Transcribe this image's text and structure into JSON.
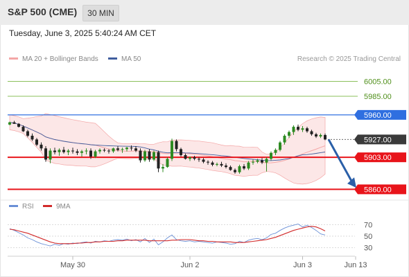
{
  "header": {
    "title": "S&P 500 (CME)",
    "timeframe": "30 MIN"
  },
  "datetime": "Tuesday, June 3, 2025 5:40:24 AM CET",
  "legend": {
    "bollinger_label": "MA 20 + Bollinger Bands",
    "ma50_label": "MA 50",
    "rsi_label": "RSI",
    "rsi_ma_label": "9MA"
  },
  "credit": "Research © 2025 Trading Central",
  "colors": {
    "bollinger": "#f4a6a6",
    "ma50": "#3f5d9e",
    "bull": "#2e8b22",
    "bear": "#222222",
    "support": "#e8141a",
    "resistance_blue": "#2f6fe0",
    "target_green": "#8bbf5a",
    "arrow": "#2a5fa8",
    "rsi": "#6a8fd6",
    "rsi_ma": "#d22a2a"
  },
  "chart_data": [
    {
      "type": "candlestick",
      "title": "S&P 500 (CME)",
      "ylim": [
        5852,
        6012
      ],
      "x_ticks": [
        {
          "label": "May 30",
          "i": 14
        },
        {
          "label": "Jun 2",
          "i": 40
        },
        {
          "label": "Jun 3",
          "i": 65
        },
        {
          "label": "Jun 13",
          "i": 75
        }
      ],
      "levels": [
        {
          "label": "6005.00",
          "value": 6005,
          "kind": "target"
        },
        {
          "label": "5985.00",
          "value": 5985,
          "kind": "target"
        },
        {
          "label": "5960.00",
          "value": 5960,
          "kind": "resistance"
        },
        {
          "label": "5927.00",
          "value": 5927,
          "kind": "last"
        },
        {
          "label": "5903.00",
          "value": 5903,
          "kind": "support"
        },
        {
          "label": "5860.00",
          "value": 5860,
          "kind": "support"
        }
      ],
      "last_price": 5927,
      "projection": {
        "from_value": 5927,
        "to_value": 5864
      },
      "candles": [
        [
          5947,
          5951,
          5946,
          5950
        ],
        [
          5950,
          5952,
          5948,
          5948
        ],
        [
          5948,
          5949,
          5943,
          5944
        ],
        [
          5944,
          5946,
          5937,
          5938
        ],
        [
          5938,
          5940,
          5930,
          5932
        ],
        [
          5932,
          5935,
          5925,
          5927
        ],
        [
          5927,
          5929,
          5918,
          5920
        ],
        [
          5920,
          5923,
          5912,
          5915
        ],
        [
          5915,
          5918,
          5897,
          5900
        ],
        [
          5900,
          5915,
          5895,
          5912
        ],
        [
          5912,
          5916,
          5907,
          5910
        ],
        [
          5910,
          5915,
          5905,
          5913
        ],
        [
          5913,
          5917,
          5908,
          5910
        ],
        [
          5910,
          5914,
          5906,
          5912
        ],
        [
          5912,
          5916,
          5908,
          5911
        ],
        [
          5911,
          5914,
          5906,
          5909
        ],
        [
          5909,
          5913,
          5904,
          5911
        ],
        [
          5911,
          5915,
          5907,
          5912
        ],
        [
          5912,
          5915,
          5901,
          5904
        ],
        [
          5904,
          5913,
          5902,
          5911
        ],
        [
          5911,
          5915,
          5908,
          5913
        ],
        [
          5913,
          5915,
          5910,
          5912
        ],
        [
          5912,
          5914,
          5908,
          5911
        ],
        [
          5911,
          5916,
          5909,
          5915
        ],
        [
          5915,
          5918,
          5911,
          5913
        ],
        [
          5913,
          5916,
          5909,
          5914
        ],
        [
          5914,
          5917,
          5911,
          5916
        ],
        [
          5916,
          5919,
          5912,
          5915
        ],
        [
          5915,
          5918,
          5910,
          5912
        ],
        [
          5912,
          5915,
          5896,
          5899
        ],
        [
          5899,
          5913,
          5897,
          5911
        ],
        [
          5911,
          5914,
          5897,
          5900
        ],
        [
          5900,
          5912,
          5898,
          5910
        ],
        [
          5910,
          5912,
          5883,
          5888
        ],
        [
          5888,
          5894,
          5883,
          5890
        ],
        [
          5890,
          5903,
          5889,
          5901
        ],
        [
          5901,
          5928,
          5898,
          5925
        ],
        [
          5925,
          5927,
          5911,
          5914
        ],
        [
          5914,
          5916,
          5904,
          5906
        ],
        [
          5906,
          5908,
          5900,
          5901
        ],
        [
          5901,
          5904,
          5898,
          5903
        ],
        [
          5903,
          5905,
          5899,
          5901
        ],
        [
          5901,
          5903,
          5897,
          5900
        ],
        [
          5900,
          5902,
          5895,
          5897
        ],
        [
          5897,
          5899,
          5893,
          5896
        ],
        [
          5896,
          5898,
          5891,
          5893
        ],
        [
          5893,
          5896,
          5891,
          5894
        ],
        [
          5894,
          5897,
          5890,
          5892
        ],
        [
          5892,
          5895,
          5888,
          5890
        ],
        [
          5890,
          5892,
          5885,
          5886
        ],
        [
          5886,
          5888,
          5881,
          5883
        ],
        [
          5883,
          5893,
          5881,
          5891
        ],
        [
          5891,
          5894,
          5886,
          5888
        ],
        [
          5888,
          5898,
          5886,
          5896
        ],
        [
          5896,
          5900,
          5893,
          5897
        ],
        [
          5897,
          5901,
          5895,
          5899
        ],
        [
          5899,
          5902,
          5894,
          5896
        ],
        [
          5896,
          5903,
          5884,
          5901
        ],
        [
          5901,
          5911,
          5899,
          5909
        ],
        [
          5909,
          5915,
          5906,
          5913
        ],
        [
          5913,
          5925,
          5911,
          5923
        ],
        [
          5923,
          5934,
          5920,
          5932
        ],
        [
          5932,
          5939,
          5929,
          5937
        ],
        [
          5937,
          5946,
          5933,
          5944
        ],
        [
          5944,
          5947,
          5938,
          5940
        ],
        [
          5940,
          5945,
          5937,
          5942
        ],
        [
          5942,
          5944,
          5936,
          5938
        ],
        [
          5938,
          5940,
          5932,
          5934
        ],
        [
          5934,
          5936,
          5929,
          5931
        ],
        [
          5931,
          5935,
          5929,
          5933
        ],
        [
          5933,
          5935,
          5926,
          5927
        ]
      ]
    },
    {
      "type": "line",
      "title": "RSI",
      "ylim": [
        20,
        80
      ],
      "y_ticks": [
        70,
        50,
        30
      ],
      "series": [
        {
          "name": "RSI",
          "values": [
            63,
            60,
            56,
            52,
            47,
            44,
            40,
            37,
            35,
            33,
            36,
            34,
            37,
            36,
            38,
            37,
            39,
            40,
            38,
            41,
            40,
            42,
            41,
            43,
            44,
            43,
            45,
            42,
            44,
            40,
            46,
            39,
            45,
            35,
            40,
            47,
            52,
            44,
            42,
            41,
            42,
            40,
            41,
            40,
            39,
            38,
            40,
            39,
            38,
            36,
            37,
            41,
            39,
            43,
            45,
            46,
            44,
            47,
            53,
            55,
            60,
            64,
            67,
            69,
            71,
            66,
            69,
            65,
            60,
            54,
            52
          ]
        },
        {
          "name": "9MA",
          "values": [
            62,
            61,
            59,
            57,
            55,
            52,
            49,
            46,
            43,
            40,
            38,
            37,
            37,
            37,
            37,
            38,
            38,
            39,
            39,
            40,
            40,
            41,
            41,
            41,
            42,
            42,
            43,
            43,
            43,
            43,
            43,
            42,
            42,
            42,
            42,
            42,
            43,
            43,
            44,
            44,
            44,
            43,
            42,
            42,
            41,
            41,
            40,
            40,
            40,
            40,
            39,
            39,
            39,
            40,
            41,
            42,
            43,
            44,
            46,
            48,
            51,
            54,
            57,
            60,
            62,
            64,
            66,
            67,
            66,
            63,
            59
          ]
        }
      ]
    }
  ]
}
